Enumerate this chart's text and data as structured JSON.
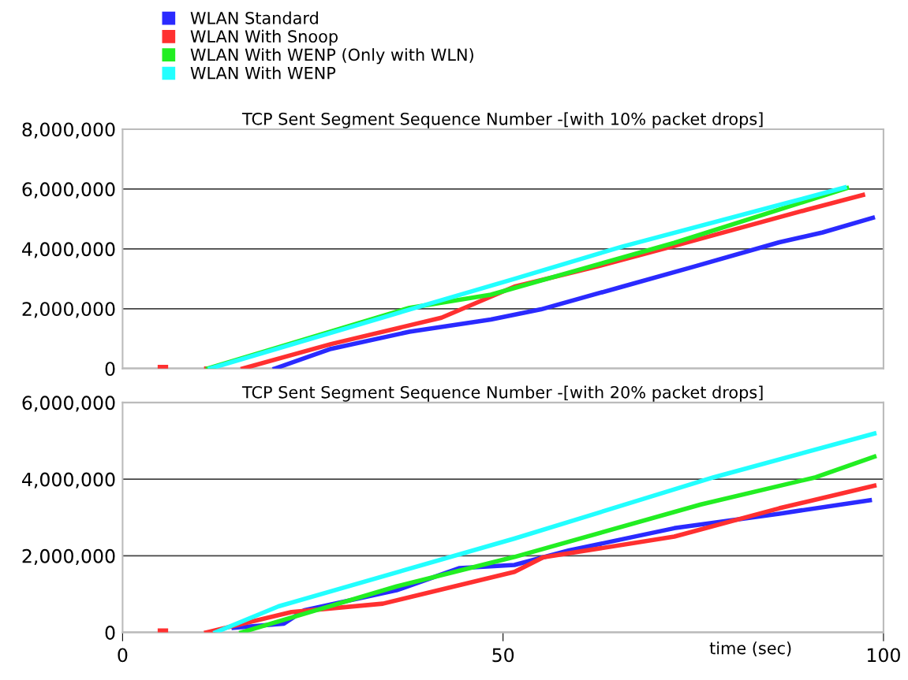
{
  "chart_data": [
    {
      "type": "line",
      "title": "TCP Sent Segment Sequence Number -[with 10% packet drops]",
      "xlim": [
        0,
        100
      ],
      "xticks": [
        0,
        50,
        100
      ],
      "ylim": [
        0,
        8000000
      ],
      "yticks": [
        {
          "value": 0,
          "label": "0"
        },
        {
          "value": 2000000,
          "label": "2,000,000"
        },
        {
          "value": 4000000,
          "label": "4,000,000"
        },
        {
          "value": 6000000,
          "label": "6,000,000"
        },
        {
          "value": 8000000,
          "label": "8,000,000"
        }
      ],
      "grid": "y",
      "legend": "top left",
      "tick_labels": "y",
      "series": [
        {
          "name": "WLAN Standard",
          "color": "#2a2aff",
          "x": [
            20,
            27.4,
            37.7,
            48.4,
            55,
            65.7,
            75,
            86.3,
            92,
            98.6
          ],
          "values": [
            0,
            660000,
            1230000,
            1640000,
            1980000,
            2740000,
            3400000,
            4220000,
            4550000,
            5040000
          ]
        },
        {
          "name": "WLAN With Snoop",
          "color": "#ff3030",
          "x": [
            4.9,
            5.7,
            null,
            11,
            12,
            null,
            15.8,
            27.4,
            41.9,
            51.5,
            62.2,
            72.5,
            89.8,
            97.3
          ],
          "values": [
            50000,
            50000,
            null,
            0,
            0,
            null,
            0,
            820000,
            1700000,
            2740000,
            3400000,
            4100000,
            5300000,
            5800000
          ]
        },
        {
          "name": "WLAN With WENP (Only with WLN)",
          "color": "#22ee22",
          "x": [
            11.2,
            37.7,
            48.4,
            72.5,
            95.2
          ],
          "values": [
            0,
            2030000,
            2470000,
            4200000,
            6030000
          ]
        },
        {
          "name": "WLAN With WENP",
          "color": "#22ffff",
          "x": [
            11.5,
            37.7,
            51.5,
            65.7,
            94.9
          ],
          "values": [
            0,
            1970000,
            3000000,
            4080000,
            6050000
          ]
        }
      ]
    },
    {
      "type": "line",
      "title": "TCP Sent Segment Sequence Number -[with 20% packet drops]",
      "xlabel": "time (sec)",
      "xlim": [
        0,
        100
      ],
      "xticks": [
        0,
        50,
        100
      ],
      "ylim": [
        0,
        6000000
      ],
      "yticks": [
        {
          "value": 0,
          "label": "0"
        },
        {
          "value": 2000000,
          "label": "2,000,000"
        },
        {
          "value": 4000000,
          "label": "4,000,000"
        },
        {
          "value": 6000000,
          "label": "6,000,000"
        }
      ],
      "grid": "y",
      "series": [
        {
          "color": "#2a2aff",
          "x": [
            14.6,
            21.2,
            23.9,
            36,
            44.3,
            51.5,
            58.7,
            72.5,
            86.3,
            98.2
          ],
          "values": [
            120000,
            230000,
            580000,
            1100000,
            1680000,
            1760000,
            2140000,
            2720000,
            3100000,
            3450000
          ]
        },
        {
          "color": "#ff3030",
          "x": [
            4.9,
            5.7,
            null,
            11,
            22.2,
            34.2,
            51.5,
            55.3,
            72.5,
            86.3,
            98.8
          ],
          "values": [
            50000,
            50000,
            null,
            0,
            530000,
            750000,
            1580000,
            1960000,
            2500000,
            3240000,
            3830000
          ]
        },
        {
          "color": "#22ee22",
          "x": [
            15.6,
            36,
            51.5,
            76,
            91.1,
            98.8
          ],
          "values": [
            0,
            1200000,
            1970000,
            3340000,
            4050000,
            4590000
          ]
        },
        {
          "color": "#22ffff",
          "x": [
            12.2,
            20.5,
            51.5,
            77.7,
            98.8
          ],
          "values": [
            0,
            680000,
            2450000,
            4050000,
            5190000
          ]
        }
      ]
    }
  ]
}
